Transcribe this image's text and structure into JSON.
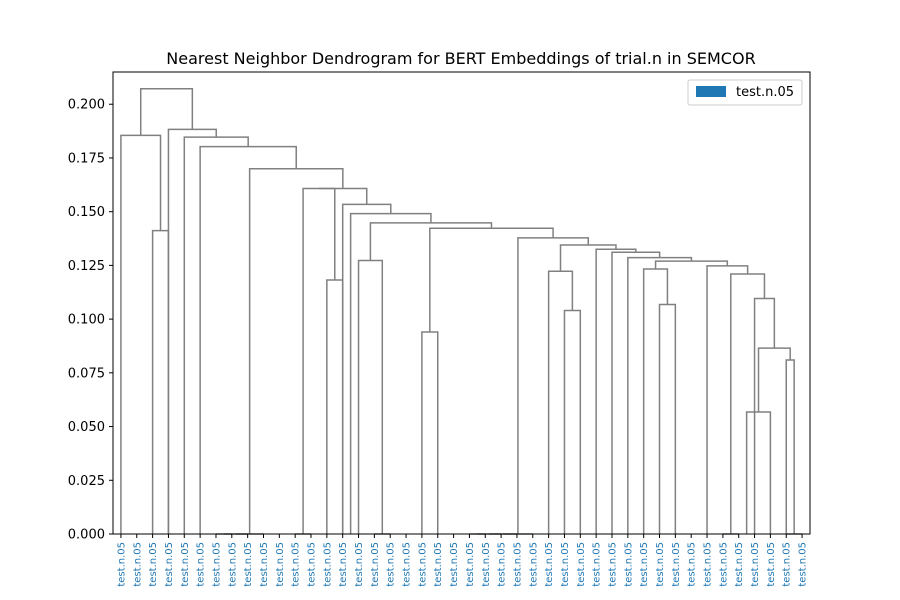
{
  "chart_data": {
    "type": "dendrogram",
    "title": "Nearest Neighbor Dendrogram for BERT Embeddings of trial.n in SEMCOR",
    "xlabel": "",
    "ylabel": "",
    "ylim": [
      0,
      0.215
    ],
    "yticks": [
      "0.000",
      "0.025",
      "0.050",
      "0.075",
      "0.100",
      "0.125",
      "0.150",
      "0.175",
      "0.200"
    ],
    "ytick_values": [
      0,
      0.025,
      0.05,
      0.075,
      0.1,
      0.125,
      0.15,
      0.175,
      0.2
    ],
    "grid": false,
    "leaf_count": 44,
    "leaf_label": "test.n.05",
    "leaf_color": "#1f77b4",
    "link_color": "#808080",
    "legend": {
      "placement": "top-right",
      "entries": [
        {
          "label": "test.n.05",
          "color": "#1f77b4"
        }
      ]
    },
    "merges": [
      [
        2,
        3,
        0.1412
      ],
      [
        0,
        "m0",
        0.1855
      ],
      [
        6,
        7,
        0.0
      ],
      [
        8,
        "m2",
        0.0
      ],
      [
        9,
        "m3",
        0.0
      ],
      [
        11,
        12,
        0.0
      ],
      [
        13,
        14,
        0.1182
      ],
      [
        "m5",
        "m6",
        0.1608
      ],
      [
        16,
        17,
        0.0
      ],
      [
        15,
        "m8",
        0.1273
      ],
      [
        19,
        20,
        0.094
      ],
      [
        22,
        23,
        0.0
      ],
      [
        24,
        "m11",
        0.0
      ],
      [
        25,
        "m12",
        0.0
      ],
      [
        26,
        "m13",
        0.0
      ],
      [
        28,
        29,
        0.104
      ],
      [
        29.5,
        29.5,
        0.0
      ],
      [
        27,
        "m15",
        0.1223
      ],
      [
        34,
        35,
        0.1068
      ],
      [
        33,
        "m18",
        0.1233
      ],
      [
        38,
        39,
        0.0
      ],
      [
        39.5,
        41,
        0.0568
      ],
      [
        42,
        43,
        0.0
      ],
      [
        42,
        "m22",
        0.081
      ],
      [
        "m21",
        "m23",
        0.0865
      ],
      [
        40,
        "m24",
        0.1096
      ],
      [
        38.5,
        "m25",
        0.121
      ],
      [
        37,
        "m26",
        0.1248
      ],
      [
        "m19",
        "m27",
        0.127
      ],
      [
        32,
        "m28",
        0.1286
      ],
      [
        31,
        "m29",
        0.1311
      ],
      [
        30,
        "m30",
        0.1325
      ],
      [
        "m17",
        "m31",
        0.1345
      ],
      [
        "m14",
        "m32",
        0.1378
      ],
      [
        "m10",
        "m33",
        0.1423
      ],
      [
        "m9",
        "m34",
        0.1448
      ],
      [
        14.5,
        "m35",
        0.1491
      ],
      [
        14,
        "m36",
        0.1534
      ],
      [
        "m7",
        "m37",
        0.1608
      ],
      [
        "m4",
        "m38",
        0.17
      ],
      [
        5,
        "m39",
        0.1803
      ],
      [
        4,
        "m40",
        0.1847
      ],
      [
        3,
        "m41",
        0.1883
      ],
      [
        "m1",
        "m42",
        0.2072
      ]
    ]
  }
}
